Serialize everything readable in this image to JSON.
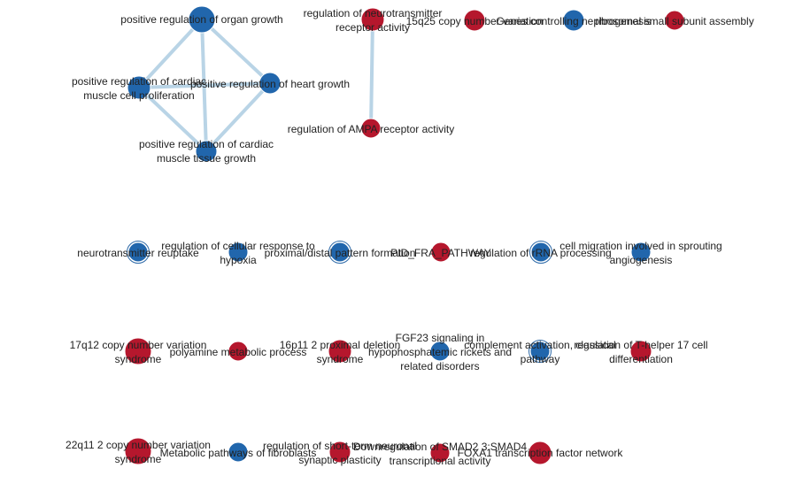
{
  "colors": {
    "up": "#b5172d",
    "down": "#2166ac",
    "edge": "#b9d4e6"
  },
  "nodes": [
    {
      "id": "n1",
      "color": "down",
      "ring": false,
      "lines": [
        "positive regulation of organ growth"
      ]
    },
    {
      "id": "n2",
      "color": "down",
      "ring": false,
      "lines": [
        "positive regulation of cardiac",
        "muscle cell proliferation"
      ]
    },
    {
      "id": "n3",
      "color": "down",
      "ring": false,
      "lines": [
        "positive regulation of heart growth"
      ]
    },
    {
      "id": "n4",
      "color": "down",
      "ring": false,
      "lines": [
        "positive regulation of cardiac",
        "muscle tissue growth"
      ]
    },
    {
      "id": "n5",
      "color": "up",
      "ring": false,
      "lines": [
        "regulation of neurotransmitter",
        "receptor activity"
      ]
    },
    {
      "id": "n6",
      "color": "up",
      "ring": false,
      "lines": [
        "regulation of AMPA receptor activity"
      ]
    },
    {
      "id": "n7",
      "color": "up",
      "ring": false,
      "lines": [
        "15q25 copy number variation"
      ]
    },
    {
      "id": "n8",
      "color": "down",
      "ring": false,
      "lines": [
        "Genes controlling nephrogenesis"
      ]
    },
    {
      "id": "n9",
      "color": "up",
      "ring": false,
      "lines": [
        "ribosomal small subunit assembly"
      ]
    },
    {
      "id": "n10",
      "color": "down",
      "ring": true,
      "lines": [
        "neurotransmitter reuptake"
      ]
    },
    {
      "id": "n11",
      "color": "down",
      "ring": false,
      "lines": [
        "regulation of cellular response to",
        "hypoxia"
      ]
    },
    {
      "id": "n12",
      "color": "down",
      "ring": true,
      "lines": [
        "proximal/distal pattern formation"
      ]
    },
    {
      "id": "n13",
      "color": "up",
      "ring": false,
      "lines": [
        "PID_FRA_PATHWAY"
      ]
    },
    {
      "id": "n14",
      "color": "down",
      "ring": true,
      "lines": [
        "regulation of rRNA processing"
      ]
    },
    {
      "id": "n15",
      "color": "down",
      "ring": false,
      "lines": [
        "cell migration involved in sprouting",
        "angiogenesis"
      ]
    },
    {
      "id": "n16",
      "color": "up",
      "ring": false,
      "lines": [
        "17q12 copy number variation",
        "syndrome"
      ]
    },
    {
      "id": "n17",
      "color": "up",
      "ring": false,
      "lines": [
        "polyamine metabolic process"
      ]
    },
    {
      "id": "n18",
      "color": "up",
      "ring": false,
      "lines": [
        "16p11 2 proximal deletion",
        "syndrome"
      ]
    },
    {
      "id": "n19",
      "color": "down",
      "ring": false,
      "lines": [
        "FGF23 signaling in",
        "hypophosphatemic rickets and",
        "related disorders"
      ]
    },
    {
      "id": "n20",
      "color": "down",
      "ring": true,
      "lines": [
        "complement activation, classical",
        "pathway"
      ]
    },
    {
      "id": "n21",
      "color": "up",
      "ring": false,
      "lines": [
        "regulation of T-helper 17 cell",
        "differentiation"
      ]
    },
    {
      "id": "n22",
      "color": "up",
      "ring": false,
      "lines": [
        "22q11 2 copy number variation",
        "syndrome"
      ]
    },
    {
      "id": "n23",
      "color": "down",
      "ring": false,
      "lines": [
        "Metabolic pathways of fibroblasts"
      ]
    },
    {
      "id": "n24",
      "color": "up",
      "ring": false,
      "lines": [
        "regulation of short-term neuronal",
        "synaptic plasticity"
      ]
    },
    {
      "id": "n25",
      "color": "up",
      "ring": false,
      "lines": [
        "Downregulation of SMAD2 3:SMAD4",
        "transcriptional activity"
      ]
    },
    {
      "id": "n26",
      "color": "up",
      "ring": false,
      "lines": [
        "FOXA1 transcription factor network"
      ]
    }
  ],
  "edges": [
    [
      "n1",
      "n2"
    ],
    [
      "n1",
      "n3"
    ],
    [
      "n1",
      "n4"
    ],
    [
      "n2",
      "n3"
    ],
    [
      "n2",
      "n4"
    ],
    [
      "n3",
      "n4"
    ],
    [
      "n5",
      "n6"
    ]
  ]
}
